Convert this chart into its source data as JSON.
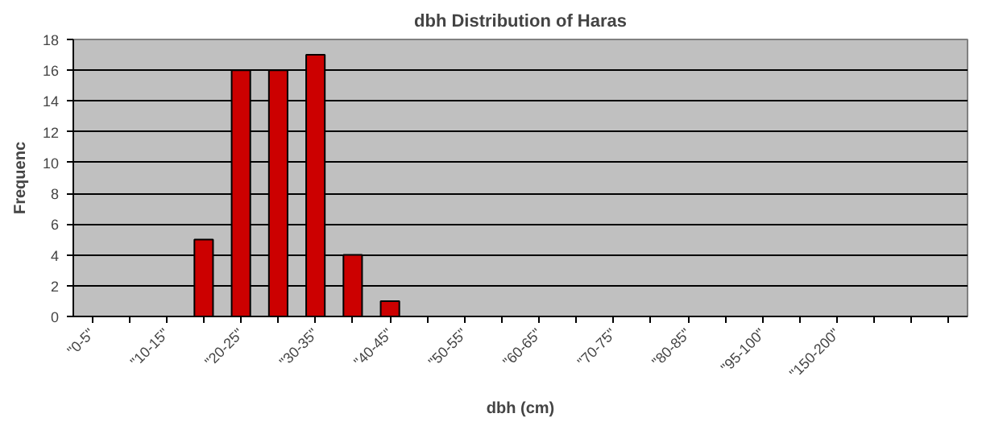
{
  "chart_data": {
    "type": "bar",
    "title": "dbh Distribution of Haras",
    "xlabel": "dbh (cm)",
    "ylabel": "Frequenc",
    "categories": [
      "\"0-5\"",
      null,
      "\"10-15\"",
      null,
      "\"20-25\"",
      null,
      "\"30-35\"",
      null,
      "\"40-45\"",
      null,
      "\"50-55\"",
      null,
      "\"60-65\"",
      null,
      "\"70-75\"",
      null,
      "\"80-85\"",
      null,
      "\"95-100\"",
      null,
      "\"150-200\"",
      null,
      null,
      null
    ],
    "values": [
      null,
      null,
      null,
      5,
      16,
      16,
      17,
      4,
      1,
      null,
      null,
      null,
      null,
      null,
      null,
      null,
      null,
      null,
      null,
      null,
      null,
      null,
      null,
      null
    ],
    "color": "#cc0000",
    "ylim": [
      0,
      18
    ],
    "yticks": [
      0,
      2,
      4,
      6,
      8,
      10,
      12,
      14,
      16,
      18
    ],
    "grid": "y"
  }
}
